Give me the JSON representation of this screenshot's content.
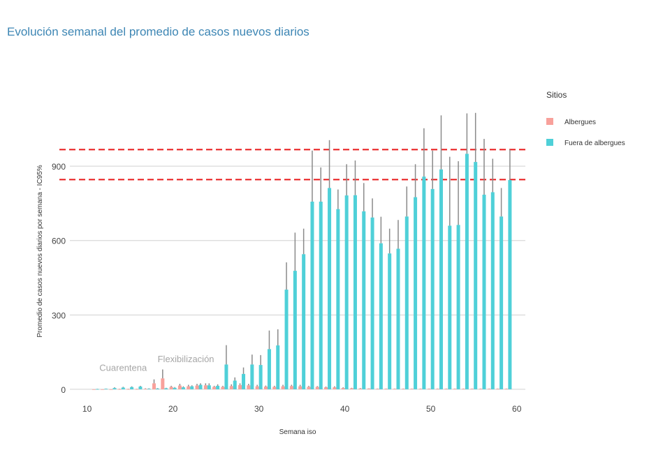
{
  "title": "Evolución semanal del promedio de casos nuevos diarios",
  "chart_data": {
    "type": "bar",
    "title": "Evolución semanal del promedio de casos nuevos diarios",
    "xlabel": "Semana iso",
    "ylabel": "Promedio de casos nuevos diarios por semana - IC95%",
    "xlim": [
      8,
      61
    ],
    "ylim": [
      -20,
      1120
    ],
    "x_ticks": [
      10,
      20,
      30,
      40,
      50,
      60
    ],
    "y_ticks": [
      0,
      300,
      600,
      900
    ],
    "grid": true,
    "legend": {
      "title": "Sitios",
      "position": "right",
      "items": [
        {
          "name": "Albergues",
          "color": "#f8a19b"
        },
        {
          "name": "Fuera de albergues",
          "color": "#4fd0d8"
        }
      ]
    },
    "reference_lines": [
      {
        "y": 967,
        "color": "#e8191a",
        "style": "dashed"
      },
      {
        "y": 846,
        "color": "#e8191a",
        "style": "dashed"
      }
    ],
    "annotations": [
      {
        "text": "Cuarentena",
        "x": 14.2,
        "y": 75
      },
      {
        "text": "Flexibilización",
        "x": 21.5,
        "y": 110
      }
    ],
    "series": [
      {
        "name": "Albergues",
        "color": "#f8a19b",
        "x": [
          11,
          12,
          13,
          14,
          15,
          16,
          17,
          18,
          19,
          20,
          21,
          22,
          23,
          24,
          25,
          26,
          27,
          28,
          29,
          30,
          31,
          32,
          33,
          34,
          35,
          36,
          37,
          38,
          39,
          40,
          41,
          42,
          43,
          44,
          45,
          46,
          47,
          48,
          49,
          50,
          51,
          52,
          53,
          54,
          55,
          56,
          57,
          58,
          59
        ],
        "values": [
          0,
          0,
          0,
          1,
          1,
          1,
          2,
          24,
          44,
          10,
          15,
          12,
          15,
          16,
          10,
          10,
          13,
          17,
          16,
          12,
          11,
          10,
          12,
          13,
          12,
          10,
          10,
          8,
          8,
          5,
          4,
          3,
          3,
          2,
          2,
          2,
          2,
          2,
          2,
          2,
          2,
          2,
          2,
          2,
          2,
          2,
          2,
          2,
          2
        ],
        "error_upper": [
          0,
          0,
          0,
          2,
          2,
          2,
          4,
          40,
          80,
          14,
          22,
          18,
          22,
          24,
          14,
          14,
          20,
          24,
          22,
          18,
          15,
          14,
          18,
          18,
          18,
          14,
          13,
          11,
          12,
          8,
          6,
          5,
          4,
          3,
          3,
          3,
          3,
          3,
          3,
          3,
          3,
          3,
          3,
          3,
          3,
          3,
          3,
          3,
          3
        ]
      },
      {
        "name": "Fuera de albergues",
        "color": "#4fd0d8",
        "x": [
          11,
          12,
          13,
          14,
          15,
          16,
          17,
          18,
          19,
          20,
          21,
          22,
          23,
          24,
          25,
          26,
          27,
          28,
          29,
          30,
          31,
          32,
          33,
          34,
          35,
          36,
          37,
          38,
          39,
          40,
          41,
          42,
          43,
          44,
          45,
          46,
          47,
          48,
          49,
          50,
          51,
          52,
          53,
          54,
          55,
          56,
          57,
          58,
          59
        ],
        "values": [
          1,
          2,
          5,
          7,
          9,
          11,
          2,
          3,
          4,
          6,
          8,
          12,
          18,
          16,
          14,
          100,
          35,
          62,
          100,
          98,
          162,
          177,
          402,
          478,
          545,
          757,
          757,
          812,
          727,
          782,
          783,
          718,
          693,
          589,
          548,
          567,
          697,
          775,
          858,
          808,
          887,
          660,
          663,
          950,
          917,
          785,
          795,
          697,
          844
        ],
        "error_upper": [
          2,
          3,
          8,
          10,
          12,
          14,
          4,
          5,
          6,
          9,
          12,
          16,
          24,
          24,
          20,
          178,
          48,
          88,
          140,
          138,
          237,
          242,
          512,
          632,
          648,
          963,
          895,
          1005,
          806,
          908,
          923,
          832,
          770,
          696,
          648,
          683,
          818,
          908,
          1053,
          963,
          1105,
          938,
          920,
          1113,
          1115,
          1010,
          930,
          812,
          967
        ]
      }
    ]
  }
}
